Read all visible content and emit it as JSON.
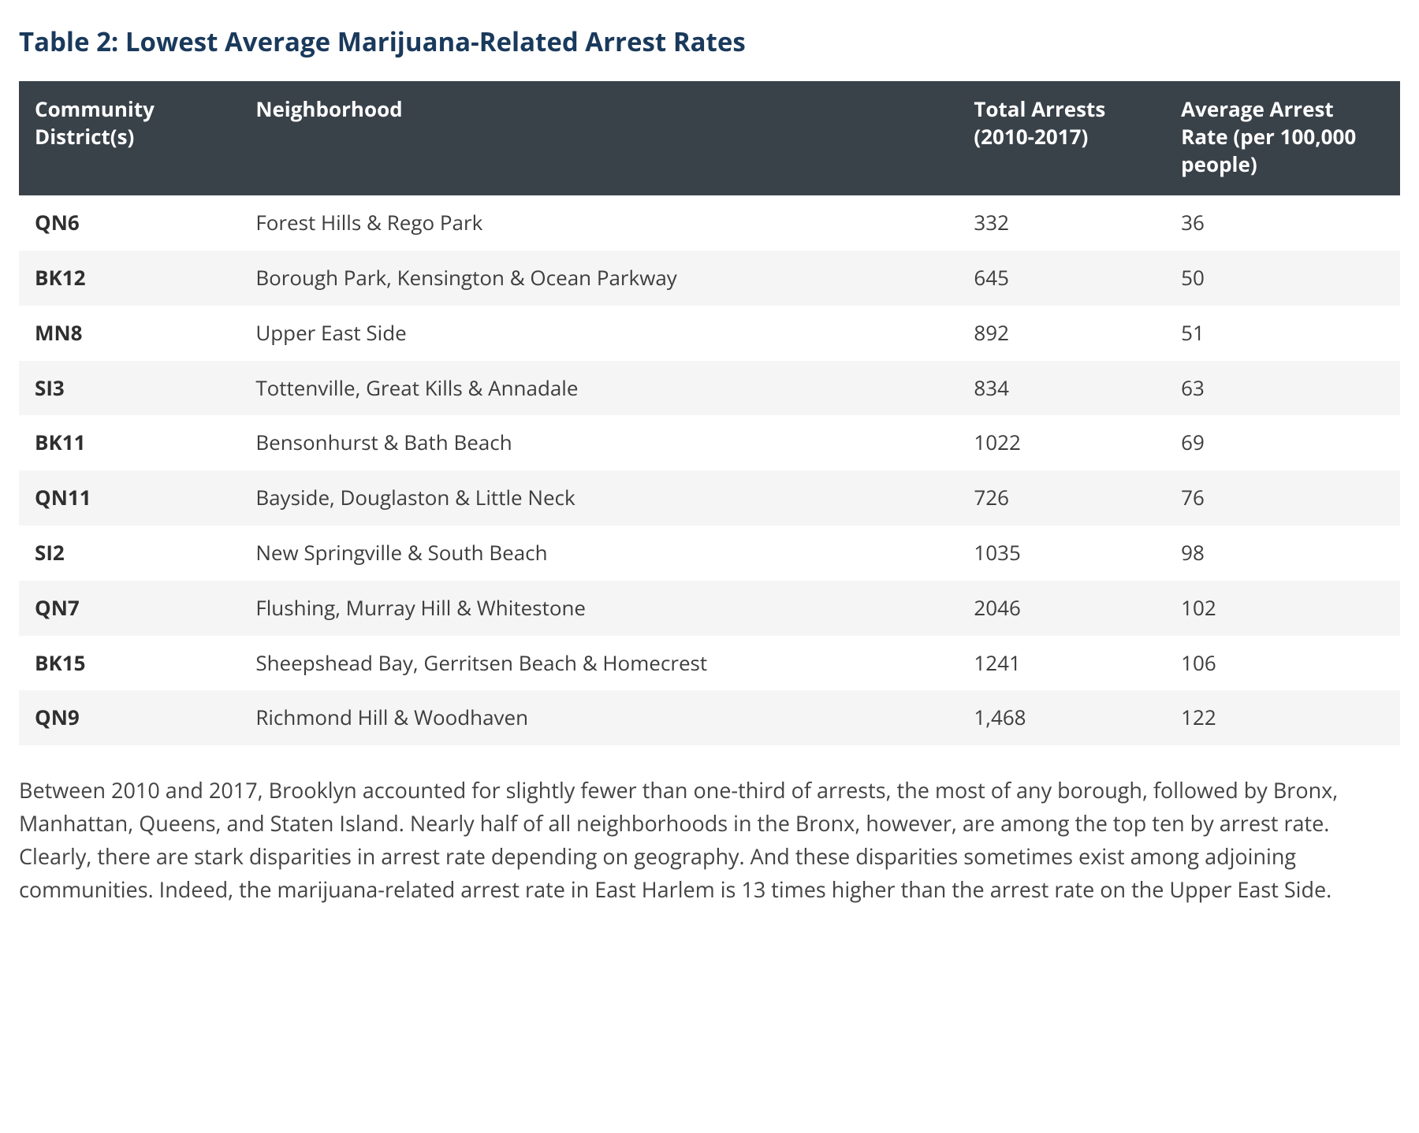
{
  "title": "Table 2: Lowest Average Marijuana-Related Arrest Rates",
  "columns": [
    "Community District(s)",
    "Neighborhood",
    "Total Arrests (2010-2017)",
    "Average Arrest Rate (per 100,000 people)"
  ],
  "rows": [
    {
      "district": "QN6",
      "neighborhood": "Forest Hills & Rego Park",
      "total": "332",
      "rate": "36"
    },
    {
      "district": "BK12",
      "neighborhood": "Borough Park, Kensington & Ocean Parkway",
      "total": "645",
      "rate": "50"
    },
    {
      "district": "MN8",
      "neighborhood": "Upper East Side",
      "total": "892",
      "rate": "51"
    },
    {
      "district": "SI3",
      "neighborhood": "Tottenville, Great Kills & Annadale",
      "total": "834",
      "rate": "63"
    },
    {
      "district": "BK11",
      "neighborhood": "Bensonhurst & Bath Beach",
      "total": "1022",
      "rate": "69"
    },
    {
      "district": "QN11",
      "neighborhood": "Bayside, Douglaston & Little Neck",
      "total": "726",
      "rate": "76"
    },
    {
      "district": "SI2",
      "neighborhood": "New Springville & South Beach",
      "total": "1035",
      "rate": "98"
    },
    {
      "district": "QN7",
      "neighborhood": "Flushing, Murray Hill & Whitestone",
      "total": "2046",
      "rate": "102"
    },
    {
      "district": "BK15",
      "neighborhood": "Sheepshead Bay, Gerritsen Beach & Homecrest",
      "total": "1241",
      "rate": "106"
    },
    {
      "district": "QN9",
      "neighborhood": "Richmond Hill & Woodhaven",
      "total": "1,468",
      "rate": "122"
    }
  ],
  "body_text": "Between 2010 and 2017, Brooklyn accounted for slightly fewer than one-third of arrests, the most of any borough, followed by Bronx, Manhattan, Queens, and Staten Island. Nearly half of all neighborhoods in the Bronx, however, are among the top ten by arrest rate. Clearly, there are stark disparities in arrest rate depending on geography. And these disparities sometimes exist among adjoining communities. Indeed, the marijuana-related arrest rate in East Harlem is 13 times higher than the arrest rate on the Upper East Side.",
  "styling": {
    "title_color": "#1a3a5c",
    "title_fontsize": 33,
    "header_bg": "#394149",
    "header_text_color": "#ffffff",
    "row_odd_bg": "#ffffff",
    "row_even_bg": "#f5f5f5",
    "body_text_color": "#444444",
    "cell_text_color": "#3d3d3d",
    "table_fontsize": 26,
    "body_fontsize": 27,
    "column_widths_pct": [
      16,
      52,
      15,
      17
    ]
  }
}
